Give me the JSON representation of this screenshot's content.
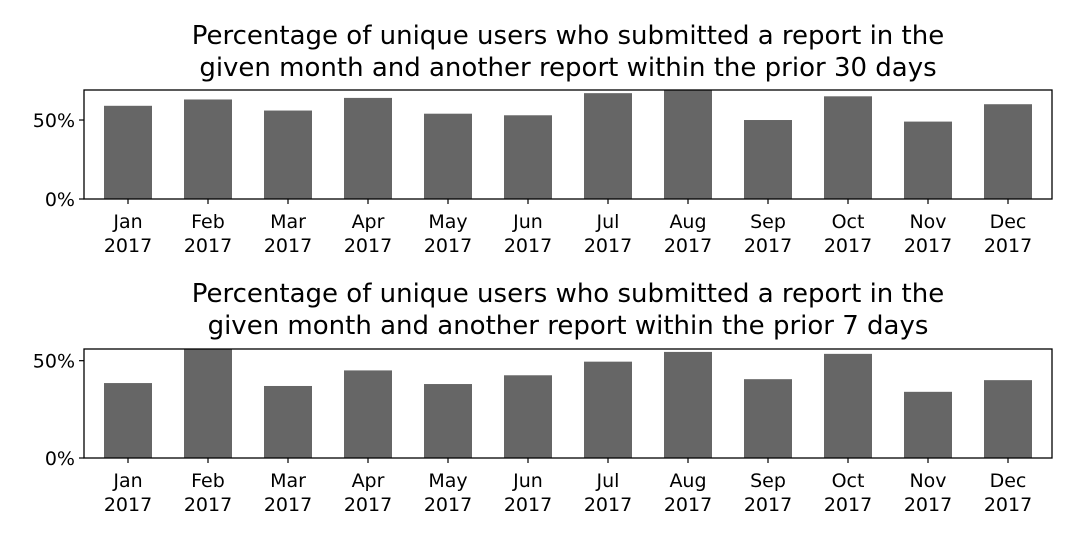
{
  "chart_data": [
    {
      "type": "bar",
      "title_lines": [
        "Percentage of unique users who submitted a report in the",
        "given month and another report within the prior 30 days"
      ],
      "categories": [
        [
          "Jan",
          "2017"
        ],
        [
          "Feb",
          "2017"
        ],
        [
          "Mar",
          "2017"
        ],
        [
          "Apr",
          "2017"
        ],
        [
          "May",
          "2017"
        ],
        [
          "Jun",
          "2017"
        ],
        [
          "Jul",
          "2017"
        ],
        [
          "Aug",
          "2017"
        ],
        [
          "Sep",
          "2017"
        ],
        [
          "Oct",
          "2017"
        ],
        [
          "Nov",
          "2017"
        ],
        [
          "Dec",
          "2017"
        ]
      ],
      "values": [
        59,
        63,
        56,
        64,
        54,
        53,
        67,
        69,
        50,
        65,
        49,
        60
      ],
      "ylim": [
        0,
        69
      ],
      "yticks": [
        0,
        50
      ],
      "ytick_labels": [
        "0%",
        "50%"
      ],
      "bar_color": "#666666"
    },
    {
      "type": "bar",
      "title_lines": [
        "Percentage of unique users who submitted a report in the",
        "given month and another report within the prior 7 days"
      ],
      "categories": [
        [
          "Jan",
          "2017"
        ],
        [
          "Feb",
          "2017"
        ],
        [
          "Mar",
          "2017"
        ],
        [
          "Apr",
          "2017"
        ],
        [
          "May",
          "2017"
        ],
        [
          "Jun",
          "2017"
        ],
        [
          "Jul",
          "2017"
        ],
        [
          "Aug",
          "2017"
        ],
        [
          "Sep",
          "2017"
        ],
        [
          "Oct",
          "2017"
        ],
        [
          "Nov",
          "2017"
        ],
        [
          "Dec",
          "2017"
        ]
      ],
      "values": [
        38.5,
        56,
        37,
        45,
        38,
        42.5,
        49.5,
        54.5,
        40.5,
        53.5,
        34,
        40
      ],
      "ylim": [
        0,
        56
      ],
      "yticks": [
        0,
        50
      ],
      "ytick_labels": [
        "0%",
        "50%"
      ],
      "bar_color": "#666666"
    }
  ]
}
